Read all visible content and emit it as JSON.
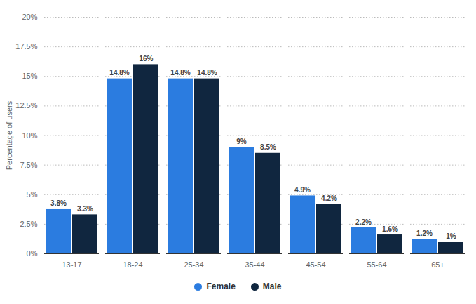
{
  "chart_data": {
    "type": "bar",
    "categories": [
      "13-17",
      "18-24",
      "25-34",
      "35-44",
      "45-54",
      "55-64",
      "65+"
    ],
    "series": [
      {
        "name": "Female",
        "color": "#2b7ce0",
        "values": [
          3.8,
          14.8,
          14.8,
          9,
          4.9,
          2.2,
          1.2
        ],
        "value_labels": [
          "3.8%",
          "14.8%",
          "14.8%",
          "9%",
          "4.9%",
          "2.2%",
          "1.2%"
        ]
      },
      {
        "name": "Male",
        "color": "#10263f",
        "values": [
          3.3,
          16,
          14.8,
          8.5,
          4.2,
          1.6,
          1
        ],
        "value_labels": [
          "3.3%",
          "16%",
          "14.8%",
          "8.5%",
          "4.2%",
          "1.6%",
          "1%"
        ]
      }
    ],
    "y_label": "Percentage of users",
    "ylim": [
      0,
      20
    ],
    "yticks": [
      {
        "value": 0,
        "label": "0%"
      },
      {
        "value": 2.5,
        "label": "2.5%"
      },
      {
        "value": 5,
        "label": "5%"
      },
      {
        "value": 7.5,
        "label": "7.5%"
      },
      {
        "value": 10,
        "label": "10%"
      },
      {
        "value": 12.5,
        "label": "12.5%"
      },
      {
        "value": 15,
        "label": "15%"
      },
      {
        "value": 17.5,
        "label": "17.5%"
      },
      {
        "value": 20,
        "label": "20%"
      }
    ],
    "grid": true,
    "legend": "bottom",
    "data_labels": true
  }
}
